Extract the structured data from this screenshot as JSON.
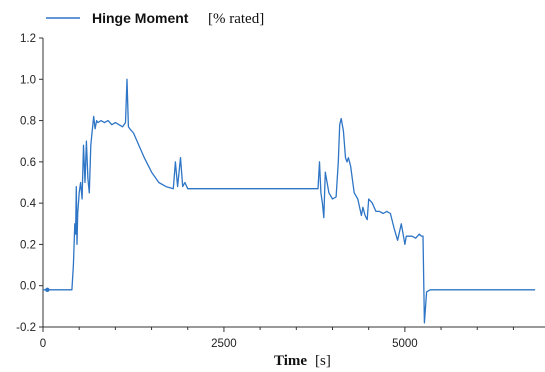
{
  "chart_data": {
    "type": "line",
    "title": "",
    "legend": {
      "position": "top-left",
      "name_bold": "Hinge Moment",
      "name_unit": "[% rated]"
    },
    "xlabel": "Time",
    "xlabel_unit": "[s]",
    "ylabel": "",
    "xlim": [
      0,
      6950
    ],
    "ylim": [
      -0.2,
      1.2
    ],
    "x_ticks": [
      0,
      2500,
      5000
    ],
    "x_tick_labels": [
      "0",
      "2500",
      "5000"
    ],
    "y_ticks": [
      -0.2,
      0.0,
      0.2,
      0.4,
      0.6,
      0.8,
      1.0,
      1.2
    ],
    "y_tick_labels": [
      "-0.2",
      "0.0",
      "0.2",
      "0.4",
      "0.6",
      "0.8",
      "1.0",
      "1.2"
    ],
    "grid": false,
    "colors": {
      "line": "#2E75C6",
      "axis": "#333333"
    },
    "series": [
      {
        "name": "Hinge Moment",
        "x": [
          0,
          60,
          90,
          100,
          400,
          420,
          440,
          450,
          460,
          470,
          480,
          500,
          520,
          540,
          560,
          580,
          600,
          620,
          640,
          660,
          680,
          700,
          720,
          740,
          760,
          800,
          850,
          900,
          950,
          1000,
          1050,
          1100,
          1140,
          1160,
          1180,
          1200,
          1250,
          1300,
          1400,
          1500,
          1600,
          1700,
          1800,
          1830,
          1860,
          1900,
          1930,
          1960,
          2000,
          2050,
          2100,
          2200,
          2500,
          3000,
          3500,
          3700,
          3800,
          3820,
          3840,
          3860,
          3880,
          3900,
          3950,
          4000,
          4050,
          4080,
          4100,
          4120,
          4150,
          4180,
          4200,
          4220,
          4250,
          4300,
          4350,
          4400,
          4420,
          4450,
          4480,
          4500,
          4550,
          4600,
          4650,
          4700,
          4750,
          4800,
          4850,
          4900,
          4950,
          5000,
          5020,
          5050,
          5100,
          5150,
          5200,
          5230,
          5250,
          5270,
          5300,
          5350,
          5500,
          6000,
          6500,
          6800
        ],
        "y": [
          -0.02,
          -0.02,
          -0.02,
          -0.02,
          -0.02,
          0.1,
          0.3,
          0.25,
          0.48,
          0.2,
          0.35,
          0.45,
          0.5,
          0.42,
          0.68,
          0.5,
          0.7,
          0.52,
          0.45,
          0.68,
          0.75,
          0.82,
          0.76,
          0.8,
          0.79,
          0.8,
          0.79,
          0.8,
          0.78,
          0.79,
          0.78,
          0.77,
          0.79,
          1.0,
          0.77,
          0.76,
          0.74,
          0.7,
          0.62,
          0.55,
          0.5,
          0.48,
          0.47,
          0.6,
          0.48,
          0.62,
          0.48,
          0.5,
          0.47,
          0.47,
          0.47,
          0.47,
          0.47,
          0.47,
          0.47,
          0.47,
          0.47,
          0.6,
          0.45,
          0.4,
          0.33,
          0.55,
          0.45,
          0.42,
          0.43,
          0.6,
          0.78,
          0.81,
          0.75,
          0.62,
          0.6,
          0.62,
          0.58,
          0.45,
          0.42,
          0.34,
          0.38,
          0.34,
          0.32,
          0.42,
          0.4,
          0.36,
          0.36,
          0.35,
          0.36,
          0.35,
          0.28,
          0.22,
          0.3,
          0.2,
          0.24,
          0.24,
          0.24,
          0.23,
          0.25,
          0.24,
          0.24,
          -0.18,
          -0.03,
          -0.02,
          -0.02,
          -0.02,
          -0.02,
          -0.02
        ]
      }
    ]
  }
}
